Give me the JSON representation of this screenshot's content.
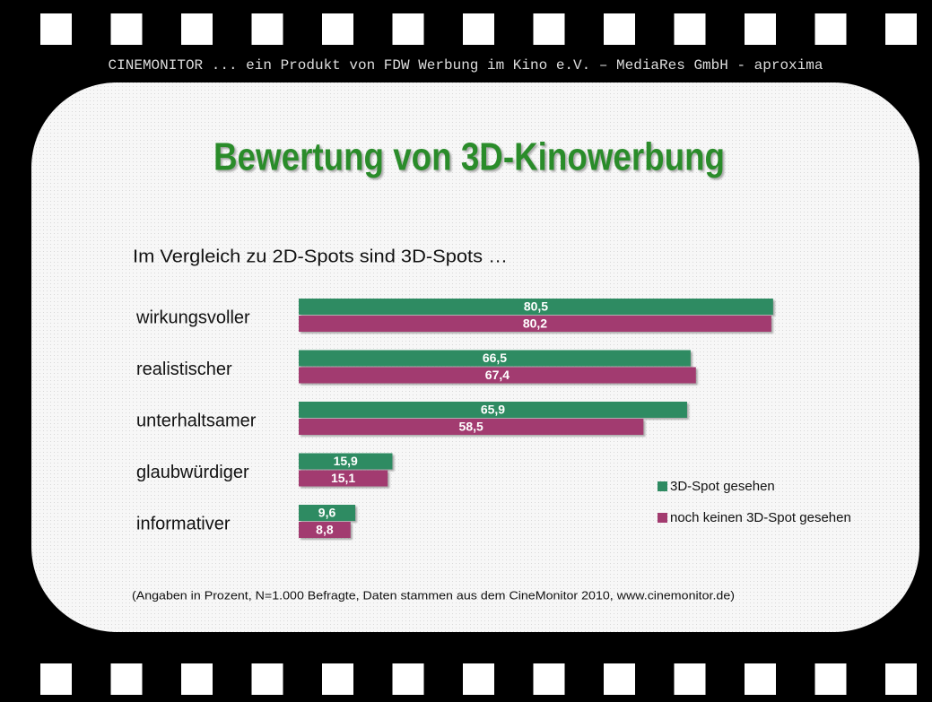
{
  "header": "CINEMONITOR ... ein Produkt von FDW Werbung im Kino e.V. – MediaRes GmbH - aproxima",
  "chart_data": {
    "type": "bar",
    "orientation": "horizontal",
    "title": "Bewertung von 3D-Kinowerbung",
    "subtitle": "Im Vergleich zu 2D-Spots sind 3D-Spots …",
    "categories": [
      "wirkungsvoller",
      "realistischer",
      "unterhaltsamer",
      "glaubwürdiger",
      "informativer"
    ],
    "series": [
      {
        "name": "3D-Spot gesehen",
        "color": "#2e8b62",
        "values": [
          80.5,
          66.5,
          65.9,
          15.9,
          9.6
        ],
        "value_labels": [
          "80,5",
          "66,5",
          "65,9",
          "15,9",
          "9,6"
        ]
      },
      {
        "name": "noch keinen 3D-Spot gesehen",
        "color": "#a23b6f",
        "values": [
          80.2,
          67.4,
          58.5,
          15.1,
          8.8
        ],
        "value_labels": [
          "80,2",
          "67,4",
          "58,5",
          "15,1",
          "8,8"
        ]
      }
    ],
    "legend": "right",
    "note": "(Angaben in Prozent, N=1.000 Befragte, Daten stammen aus dem CineMonitor 2010, www.cinemonitor.de)"
  }
}
